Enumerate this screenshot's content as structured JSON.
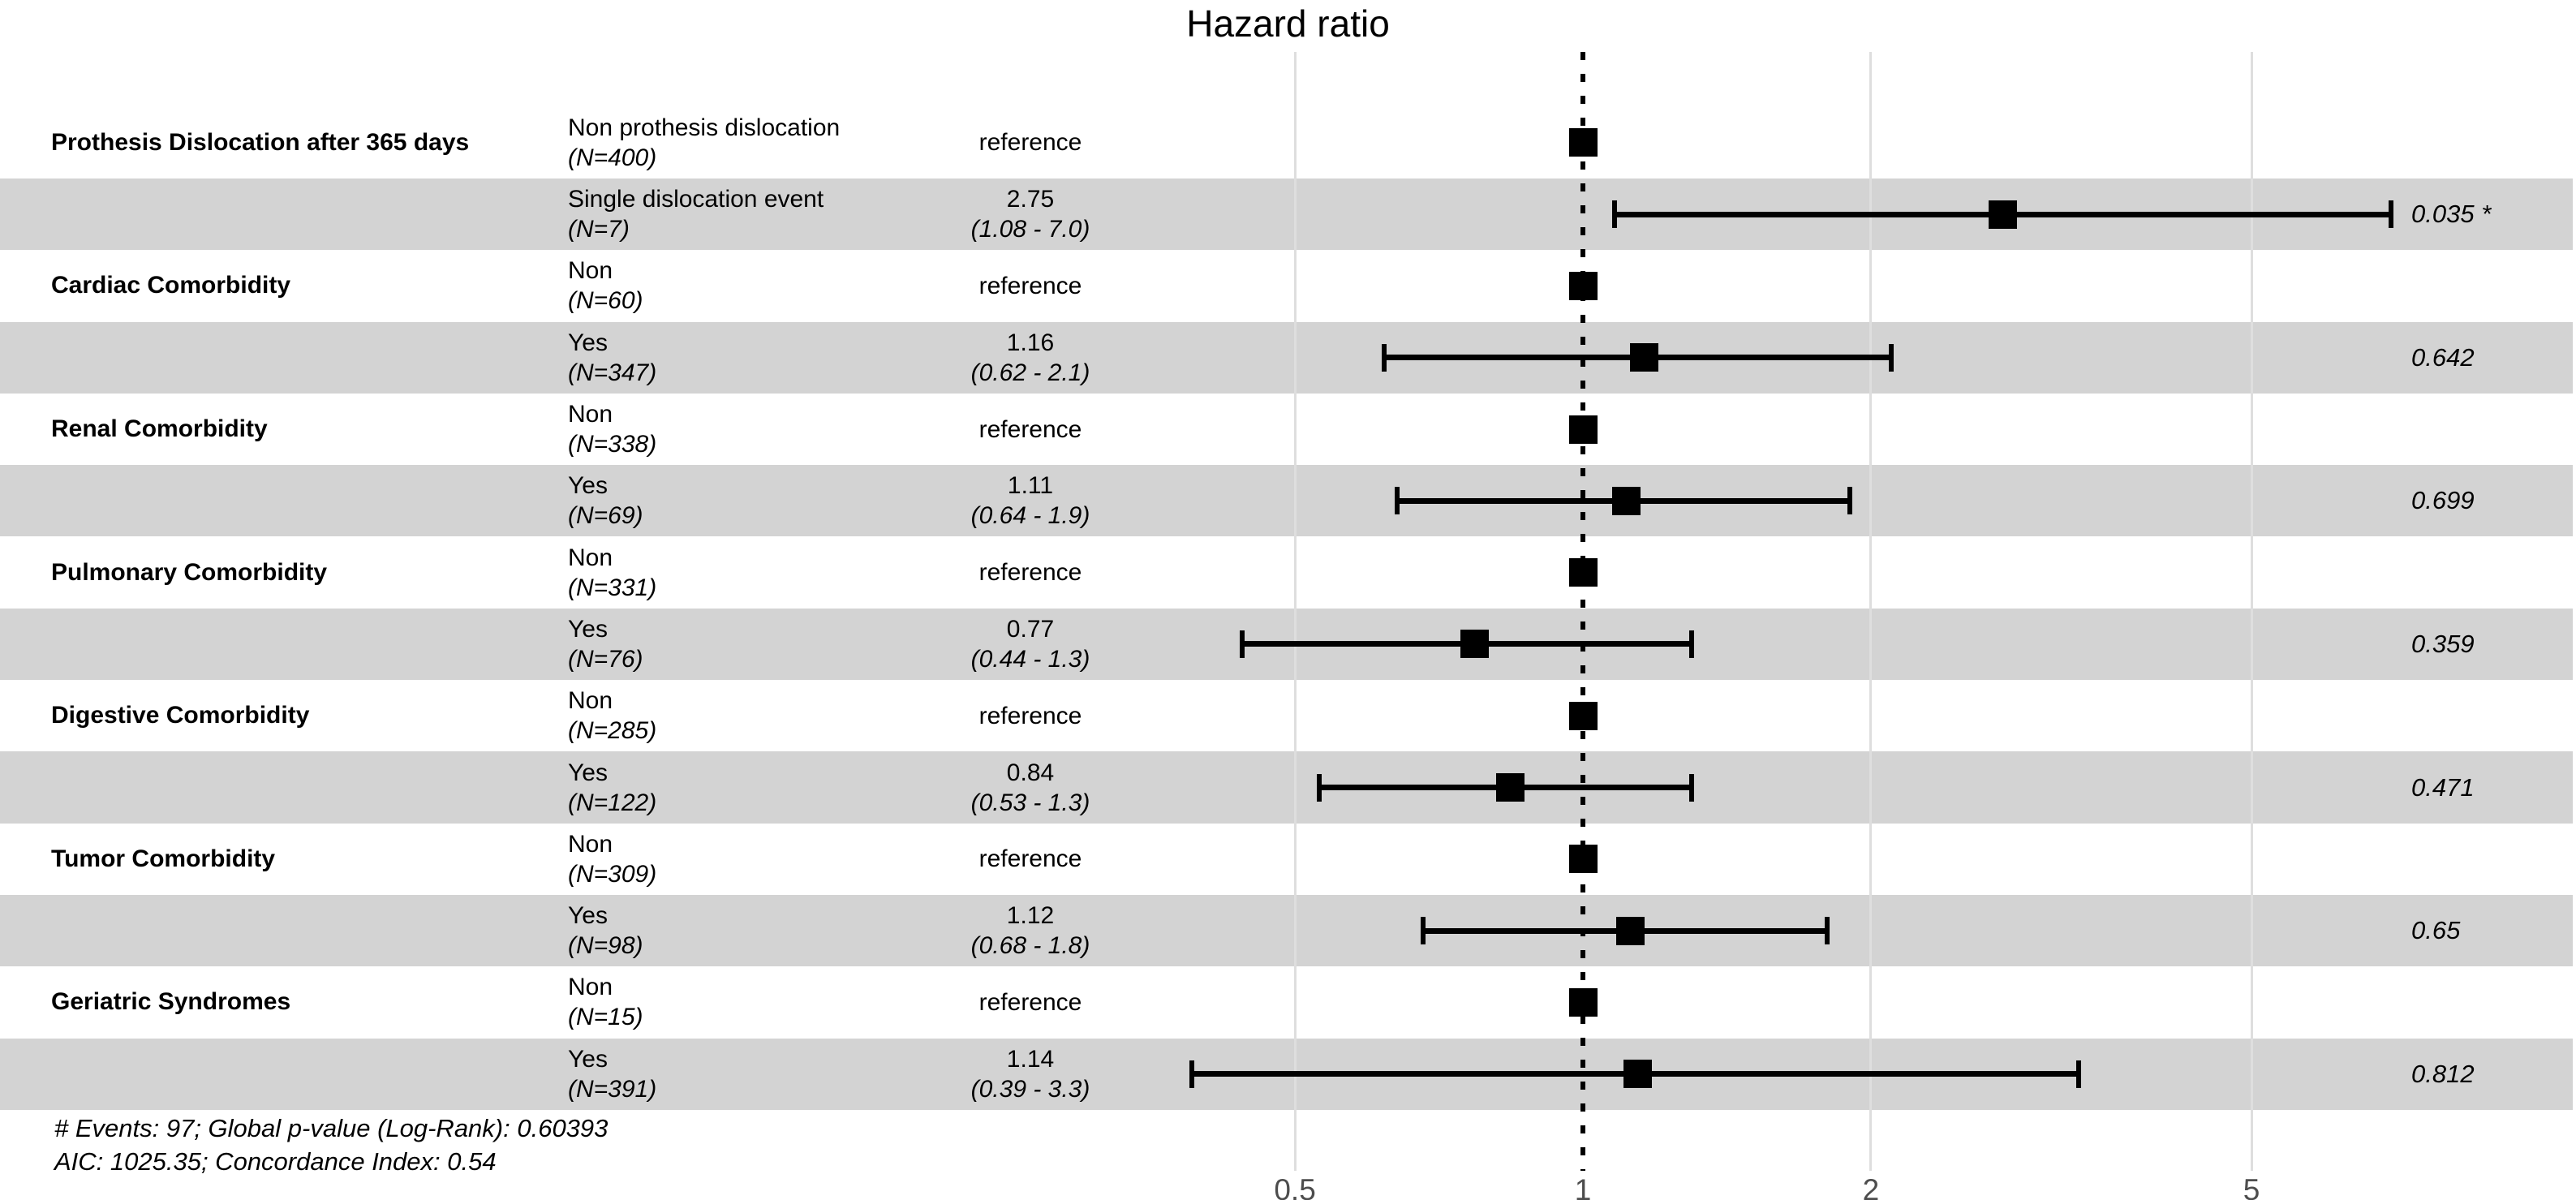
{
  "title": "Hazard ratio",
  "footer": {
    "line1": "# Events: 97; Global p-value (Log-Rank): 0.60393",
    "line2": "AIC: 1025.35; Concordance Index: 0.54"
  },
  "colors": {
    "background": "#FFFFFF",
    "band": "#D3D3D3",
    "grid": "#DEDEDE",
    "reference_line": "#000000",
    "marker": "#000000",
    "axis_text": "#4D4D4D",
    "text": "#000000"
  },
  "chart_data": {
    "type": "scatter",
    "subtype": "forest-plot",
    "title": "Hazard ratio",
    "xscale": "log10",
    "xticks": [
      {
        "label": "0.5",
        "value": 0.5
      },
      {
        "label": "1",
        "value": 1
      },
      {
        "label": "2",
        "value": 2
      },
      {
        "label": "5",
        "value": 5
      }
    ],
    "reference_line_value": 1,
    "xlim_approx": [
      0.33,
      8.5
    ],
    "grid": "vertical-only",
    "legend": "none",
    "rows": [
      {
        "variable": "Prothesis Dislocation after 365 days",
        "level": "Non prothesis dislocation",
        "n_label": "(N=400)",
        "estimate_label": "reference",
        "is_reference": true,
        "hr": 1,
        "ci_low": null,
        "ci_high": null,
        "p_label": ""
      },
      {
        "variable": "",
        "level": "Single dislocation event",
        "n_label": "(N=7)",
        "estimate_label": "2.75",
        "ci_label": "(1.08 - 7.0)",
        "is_reference": false,
        "hr": 2.75,
        "ci_low": 1.08,
        "ci_high": 7.0,
        "p_label": "0.035 *"
      },
      {
        "variable": "Cardiac Comorbidity",
        "level": "Non",
        "n_label": "(N=60)",
        "estimate_label": "reference",
        "is_reference": true,
        "hr": 1,
        "ci_low": null,
        "ci_high": null,
        "p_label": ""
      },
      {
        "variable": "",
        "level": "Yes",
        "n_label": "(N=347)",
        "estimate_label": "1.16",
        "ci_label": "(0.62 - 2.1)",
        "is_reference": false,
        "hr": 1.16,
        "ci_low": 0.62,
        "ci_high": 2.1,
        "p_label": "0.642"
      },
      {
        "variable": "Renal Comorbidity",
        "level": "Non",
        "n_label": "(N=338)",
        "estimate_label": "reference",
        "is_reference": true,
        "hr": 1,
        "ci_low": null,
        "ci_high": null,
        "p_label": ""
      },
      {
        "variable": "",
        "level": "Yes",
        "n_label": "(N=69)",
        "estimate_label": "1.11",
        "ci_label": "(0.64 - 1.9)",
        "is_reference": false,
        "hr": 1.11,
        "ci_low": 0.64,
        "ci_high": 1.9,
        "p_label": "0.699"
      },
      {
        "variable": "Pulmonary Comorbidity",
        "level": "Non",
        "n_label": "(N=331)",
        "estimate_label": "reference",
        "is_reference": true,
        "hr": 1,
        "ci_low": null,
        "ci_high": null,
        "p_label": ""
      },
      {
        "variable": "",
        "level": "Yes",
        "n_label": "(N=76)",
        "estimate_label": "0.77",
        "ci_label": "(0.44 - 1.3)",
        "is_reference": false,
        "hr": 0.77,
        "ci_low": 0.44,
        "ci_high": 1.3,
        "p_label": "0.359"
      },
      {
        "variable": "Digestive Comorbidity",
        "level": "Non",
        "n_label": "(N=285)",
        "estimate_label": "reference",
        "is_reference": true,
        "hr": 1,
        "ci_low": null,
        "ci_high": null,
        "p_label": ""
      },
      {
        "variable": "",
        "level": "Yes",
        "n_label": "(N=122)",
        "estimate_label": "0.84",
        "ci_label": "(0.53 - 1.3)",
        "is_reference": false,
        "hr": 0.84,
        "ci_low": 0.53,
        "ci_high": 1.3,
        "p_label": "0.471"
      },
      {
        "variable": "Tumor Comorbidity",
        "level": "Non",
        "n_label": "(N=309)",
        "estimate_label": "reference",
        "is_reference": true,
        "hr": 1,
        "ci_low": null,
        "ci_high": null,
        "p_label": ""
      },
      {
        "variable": "",
        "level": "Yes",
        "n_label": "(N=98)",
        "estimate_label": "1.12",
        "ci_label": "(0.68 - 1.8)",
        "is_reference": false,
        "hr": 1.12,
        "ci_low": 0.68,
        "ci_high": 1.8,
        "p_label": "0.65"
      },
      {
        "variable": "Geriatric Syndromes",
        "level": "Non",
        "n_label": "(N=15)",
        "estimate_label": "reference",
        "is_reference": true,
        "hr": 1,
        "ci_low": null,
        "ci_high": null,
        "p_label": ""
      },
      {
        "variable": "",
        "level": "Yes",
        "n_label": "(N=391)",
        "estimate_label": "1.14",
        "ci_label": "(0.39 - 3.3)",
        "is_reference": false,
        "hr": 1.14,
        "ci_low": 0.39,
        "ci_high": 3.3,
        "p_label": "0.812"
      }
    ],
    "footnotes": [
      "# Events: 97; Global p-value (Log-Rank): 0.60393",
      "AIC: 1025.35; Concordance Index: 0.54"
    ]
  }
}
